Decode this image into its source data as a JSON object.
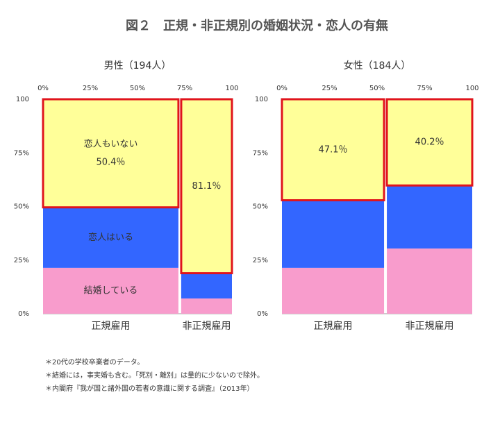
{
  "header": {
    "title": "図２　正規・非正規別の婚姻状況・恋人の有無"
  },
  "notes": [
    "＊20代の学校卒業者のデータ。",
    "＊結婚には，事実婚も含む。「死別・離別」は量的に少ないので除外。",
    "＊内閣府『我が国と諸外国の若者の意識に関する調査』（2013年）"
  ],
  "chart_data": [
    {
      "type": "mosaic",
      "title": "男性（194人）",
      "categories": [
        "正規雇用",
        "非正規雇用"
      ],
      "widths": [
        72.4,
        27.6
      ],
      "xlim": [
        0,
        100
      ],
      "ylim": [
        0,
        100
      ],
      "xticks": [
        {
          "value": 0,
          "label": "0%"
        },
        {
          "value": 25,
          "label": "25%"
        },
        {
          "value": 50,
          "label": "50%"
        },
        {
          "value": 75,
          "label": "75%"
        },
        100
      ],
      "yticks": [
        {
          "value": 0,
          "label": "0%"
        },
        {
          "value": 25,
          "label": "25%"
        },
        {
          "value": 50,
          "label": "50%"
        },
        {
          "value": 75,
          "label": "75%"
        },
        100
      ],
      "series": [
        {
          "name": "結婚している",
          "color": "#f89ccc",
          "values": [
            21.4,
            7.1
          ]
        },
        {
          "name": "恋人はいる",
          "color": "#3366ff",
          "values": [
            28.2,
            11.8
          ]
        },
        {
          "name": "恋人もいない",
          "color": "#ffff99",
          "values": [
            50.4,
            81.1
          ],
          "value_labels": [
            "50.4％",
            "81.1％"
          ]
        }
      ]
    },
    {
      "type": "mosaic",
      "title": "女性（184人）",
      "categories": [
        "正規雇用",
        "非正規雇用"
      ],
      "widths": [
        54.4,
        45.6
      ],
      "xlim": [
        0,
        100
      ],
      "ylim": [
        0,
        100
      ],
      "xticks": [
        {
          "value": 0,
          "label": "0%"
        },
        {
          "value": 25,
          "label": "25%"
        },
        {
          "value": 50,
          "label": "50%"
        },
        {
          "value": 75,
          "label": "75%"
        },
        100
      ],
      "yticks": [
        {
          "value": 0,
          "label": "0%"
        },
        {
          "value": 25,
          "label": "25%"
        },
        {
          "value": 50,
          "label": "50%"
        },
        {
          "value": 75,
          "label": "75%"
        },
        100
      ],
      "series": [
        {
          "color": "#f89ccc",
          "values": [
            21.4,
            30.4
          ]
        },
        {
          "color": "#3366ff",
          "values": [
            31.5,
            29.4
          ]
        },
        {
          "color": "#ffff99",
          "values": [
            47.1,
            40.2
          ],
          "value_labels": [
            "47.1％",
            "40.2％"
          ]
        }
      ]
    }
  ]
}
